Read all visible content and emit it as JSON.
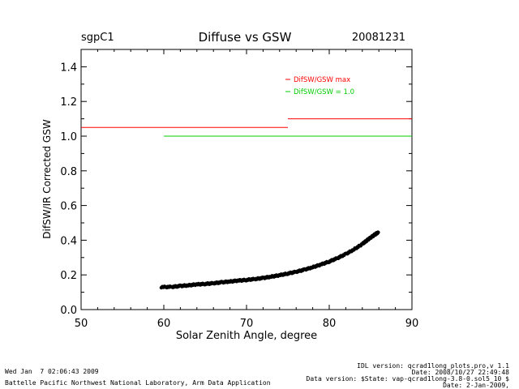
{
  "chart_data": {
    "type": "scatter",
    "site": "sgpC1",
    "title": "Diffuse vs GSW",
    "date": "20081231",
    "xlabel": "Solar Zenith Angle, degree",
    "ylabel": "DifSW/IR Corrected GSW",
    "xlim": [
      50,
      90
    ],
    "ylim": [
      0,
      1.5
    ],
    "xticks": [
      "50",
      "60",
      "70",
      "80",
      "90"
    ],
    "yticks": [
      "0.0",
      "0.2",
      "0.4",
      "0.6",
      "0.8",
      "1.0",
      "1.2",
      "1.4"
    ],
    "grid": false,
    "legend_position": "top-right",
    "legend": [
      {
        "label": "DifSW/GSW max",
        "color": "#ff0000"
      },
      {
        "label": "DifSW/GSW = 1.0",
        "color": "#00cc00"
      }
    ],
    "lines": [
      {
        "name": "DifSW/GSW max",
        "color": "#ff0000",
        "segments": [
          {
            "x": [
              50,
              75
            ],
            "y": [
              1.05,
              1.05
            ]
          },
          {
            "x": [
              75,
              90
            ],
            "y": [
              1.1,
              1.1
            ]
          }
        ]
      },
      {
        "name": "DifSW/GSW = 1.0",
        "color": "#00cc00",
        "segments": [
          {
            "x": [
              60,
              90
            ],
            "y": [
              1.0,
              1.0
            ]
          }
        ]
      }
    ],
    "series": [
      {
        "color": "#000000",
        "x": [
          59.7,
          61,
          62,
          63,
          64,
          65,
          66,
          67,
          68,
          69,
          70,
          71,
          72,
          73,
          74,
          75,
          76,
          77,
          78,
          79,
          80,
          81,
          82,
          83,
          84,
          84.5,
          85,
          85.5,
          85.9
        ],
        "y": [
          0.13,
          0.131,
          0.136,
          0.14,
          0.145,
          0.148,
          0.152,
          0.157,
          0.162,
          0.167,
          0.171,
          0.176,
          0.182,
          0.19,
          0.198,
          0.208,
          0.218,
          0.23,
          0.244,
          0.26,
          0.277,
          0.297,
          0.32,
          0.347,
          0.378,
          0.397,
          0.415,
          0.432,
          0.445
        ]
      }
    ]
  },
  "footer": {
    "left_line1": "Wed Jan  7 02:06:43 2009",
    "left_line2": "Battelle Pacific Northwest National Laboratory, Arm Data Application",
    "right_line1": "IDL version: qcrad1long_plots.pro,v 1.1",
    "right_line2": "Date: 2008/10/27 22:49:48",
    "right_line3": "Data version: $State: vap-qcrad1long-3.8-0.sol5_10 $",
    "right_line4": "Date: 2-Jan-2009,"
  }
}
